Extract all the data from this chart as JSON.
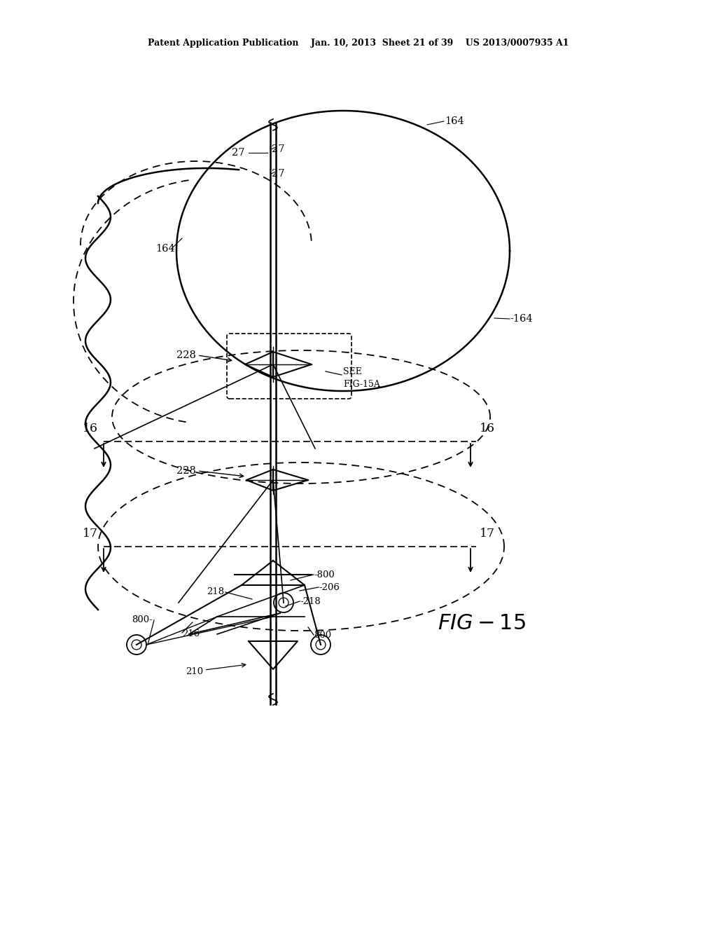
{
  "bg_color": "#ffffff",
  "line_color": "#000000",
  "header": "Patent Application Publication    Jan. 10, 2013  Sheet 21 of 39    US 2013/0007935 A1"
}
